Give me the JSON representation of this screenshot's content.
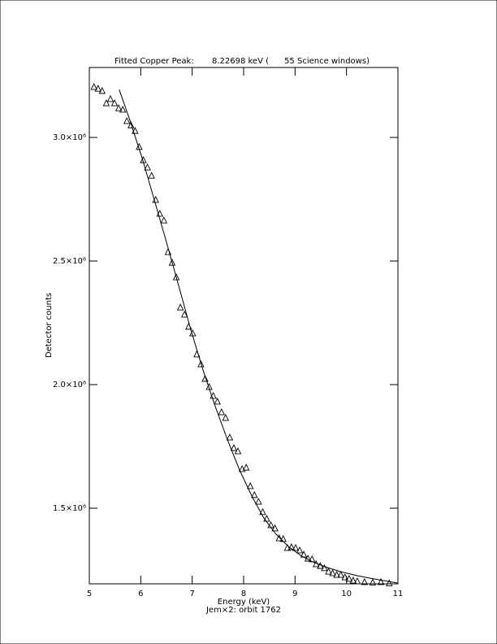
{
  "chart_data": {
    "type": "scatter",
    "title": "Fitted Copper Peak:       8.22698 keV (      55 Science windows)",
    "xlabel": "Energy (keV)",
    "subtitle": "Jem×2: orbit 1762",
    "ylabel": "Detector counts",
    "xlim": [
      5,
      11
    ],
    "xticks": [
      5,
      6,
      7,
      8,
      9,
      10,
      11
    ],
    "ylim": [
      1194000,
      3283000
    ],
    "yticks": [
      {
        "value": 1500000,
        "label": "1.5×10⁶"
      },
      {
        "value": 2000000,
        "label": "2.0×10⁶"
      },
      {
        "value": 2500000,
        "label": "2.5×10⁶"
      },
      {
        "value": 3000000,
        "label": "3.0×10⁶"
      }
    ],
    "series": [
      {
        "marker": "triangle",
        "color": "#000000",
        "x": [
          5.09,
          5.17,
          5.25,
          5.33,
          5.41,
          5.49,
          5.57,
          5.65,
          5.73,
          5.81,
          5.89,
          5.97,
          6.05,
          6.13,
          6.21,
          6.29,
          6.37,
          6.45,
          6.53,
          6.61,
          6.69,
          6.77,
          6.85,
          6.93,
          7.01,
          7.09,
          7.17,
          7.25,
          7.33,
          7.41,
          7.49,
          7.57,
          7.65,
          7.73,
          7.81,
          7.89,
          7.97,
          8.05,
          8.13,
          8.21,
          8.29,
          8.37,
          8.45,
          8.53,
          8.61,
          8.69,
          8.77,
          8.85,
          8.93,
          9.01,
          9.09,
          9.17,
          9.25,
          9.33,
          9.41,
          9.49,
          9.57,
          9.65,
          9.73,
          9.81,
          9.89,
          9.97,
          10.05,
          10.13,
          10.21,
          10.35,
          10.51,
          10.67,
          10.83
        ],
        "values": [
          3204000,
          3197000,
          3188000,
          3138000,
          3155000,
          3138000,
          3118000,
          3112000,
          3066000,
          3049000,
          3026000,
          2961000,
          2908000,
          2878000,
          2845000,
          2747000,
          2691000,
          2664000,
          2536000,
          2493000,
          2434000,
          2312000,
          2283000,
          2234000,
          2207000,
          2122000,
          2082000,
          2023000,
          1990000,
          1954000,
          1931000,
          1888000,
          1865000,
          1786000,
          1743000,
          1730000,
          1658000,
          1664000,
          1589000,
          1553000,
          1526000,
          1484000,
          1457000,
          1431000,
          1418000,
          1378000,
          1375000,
          1339000,
          1342000,
          1339000,
          1329000,
          1312000,
          1296000,
          1293000,
          1273000,
          1266000,
          1257000,
          1243000,
          1237000,
          1230000,
          1230000,
          1220000,
          1214000,
          1207000,
          1204000,
          1201000,
          1199000,
          1201000,
          1196000
        ]
      },
      {
        "marker": "line",
        "color": "#000000",
        "x": [
          5.58,
          5.79,
          6.03,
          6.26,
          6.5,
          6.74,
          6.97,
          7.21,
          7.45,
          7.68,
          7.92,
          8.16,
          8.39,
          8.63,
          8.87,
          9.11,
          9.34,
          9.58,
          9.89,
          10.21,
          10.53,
          11
        ],
        "values": [
          3194000,
          3069000,
          2914000,
          2750000,
          2576000,
          2398000,
          2224000,
          2059000,
          1911000,
          1780000,
          1655000,
          1549000,
          1461000,
          1395000,
          1345000,
          1309000,
          1283000,
          1263000,
          1243000,
          1227000,
          1214000,
          1197000
        ]
      }
    ]
  }
}
